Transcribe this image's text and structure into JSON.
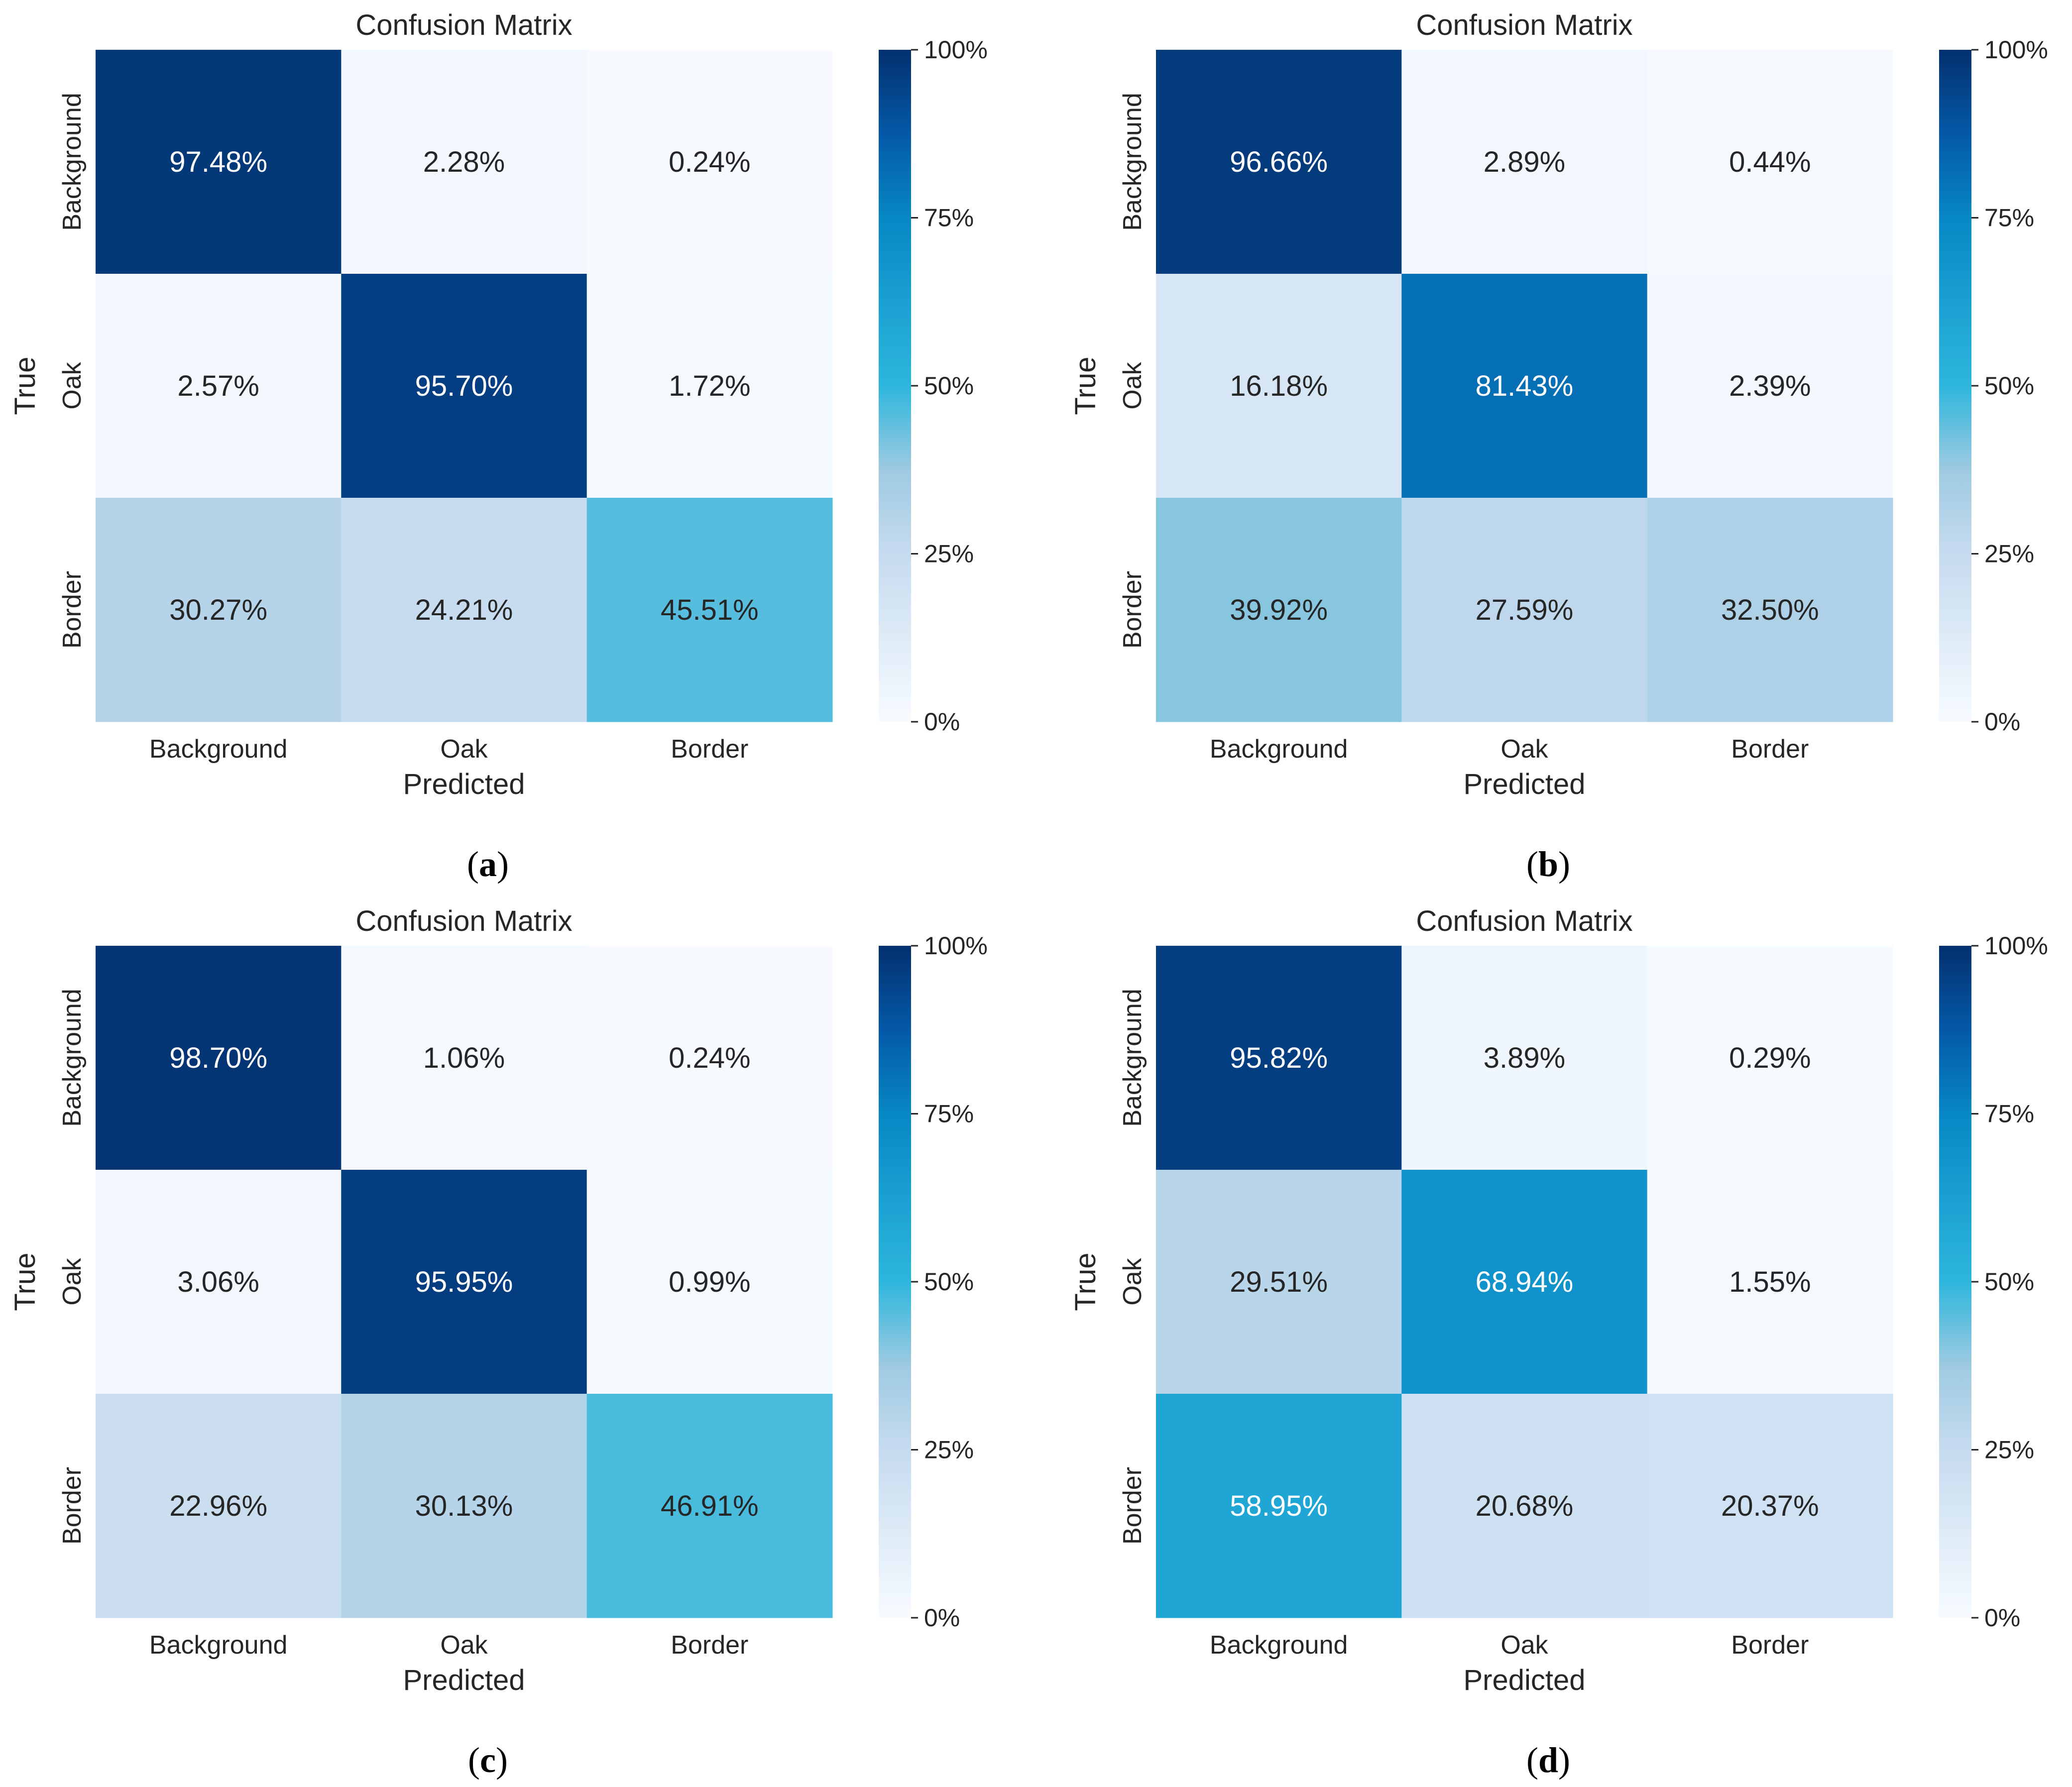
{
  "chart_data": [
    {
      "type": "heatmap",
      "panel_label": "a",
      "title": "Confusion Matrix",
      "xlabel": "Predicted",
      "ylabel": "True",
      "x_categories": [
        "Background",
        "Oak",
        "Border"
      ],
      "y_categories": [
        "Background",
        "Oak",
        "Border"
      ],
      "values": [
        [
          97.48,
          2.28,
          0.24
        ],
        [
          2.57,
          95.7,
          1.72
        ],
        [
          30.27,
          24.21,
          45.51
        ]
      ],
      "cell_labels": [
        [
          "97.48%",
          "2.28%",
          "0.24%"
        ],
        [
          "2.57%",
          "95.70%",
          "1.72%"
        ],
        [
          "30.27%",
          "24.21%",
          "45.51%"
        ]
      ],
      "colorbar": {
        "min": 0,
        "max": 100,
        "ticks": [
          "0%",
          "25%",
          "50%",
          "75%",
          "100%"
        ],
        "colormap": "Blues"
      }
    },
    {
      "type": "heatmap",
      "panel_label": "b",
      "title": "Confusion Matrix",
      "xlabel": "Predicted",
      "ylabel": "True",
      "x_categories": [
        "Background",
        "Oak",
        "Border"
      ],
      "y_categories": [
        "Background",
        "Oak",
        "Border"
      ],
      "values": [
        [
          96.66,
          2.89,
          0.44
        ],
        [
          16.18,
          81.43,
          2.39
        ],
        [
          39.92,
          27.59,
          32.5
        ]
      ],
      "cell_labels": [
        [
          "96.66%",
          "2.89%",
          "0.44%"
        ],
        [
          "16.18%",
          "81.43%",
          "2.39%"
        ],
        [
          "39.92%",
          "27.59%",
          "32.50%"
        ]
      ],
      "colorbar": {
        "min": 0,
        "max": 100,
        "ticks": [
          "0%",
          "25%",
          "50%",
          "75%",
          "100%"
        ],
        "colormap": "Blues"
      }
    },
    {
      "type": "heatmap",
      "panel_label": "c",
      "title": "Confusion Matrix",
      "xlabel": "Predicted",
      "ylabel": "True",
      "x_categories": [
        "Background",
        "Oak",
        "Border"
      ],
      "y_categories": [
        "Background",
        "Oak",
        "Border"
      ],
      "values": [
        [
          98.7,
          1.06,
          0.24
        ],
        [
          3.06,
          95.95,
          0.99
        ],
        [
          22.96,
          30.13,
          46.91
        ]
      ],
      "cell_labels": [
        [
          "98.70%",
          "1.06%",
          "0.24%"
        ],
        [
          "3.06%",
          "95.95%",
          "0.99%"
        ],
        [
          "22.96%",
          "30.13%",
          "46.91%"
        ]
      ],
      "colorbar": {
        "min": 0,
        "max": 100,
        "ticks": [
          "0%",
          "25%",
          "50%",
          "75%",
          "100%"
        ],
        "colormap": "Blues"
      }
    },
    {
      "type": "heatmap",
      "panel_label": "d",
      "title": "Confusion Matrix",
      "xlabel": "Predicted",
      "ylabel": "True",
      "x_categories": [
        "Background",
        "Oak",
        "Border"
      ],
      "y_categories": [
        "Background",
        "Oak",
        "Border"
      ],
      "values": [
        [
          95.82,
          3.89,
          0.29
        ],
        [
          29.51,
          68.94,
          1.55
        ],
        [
          58.95,
          20.68,
          20.37
        ]
      ],
      "cell_labels": [
        [
          "95.82%",
          "3.89%",
          "0.29%"
        ],
        [
          "29.51%",
          "68.94%",
          "1.55%"
        ],
        [
          "58.95%",
          "20.68%",
          "20.37%"
        ]
      ],
      "colorbar": {
        "min": 0,
        "max": 100,
        "ticks": [
          "0%",
          "25%",
          "50%",
          "75%",
          "100%"
        ],
        "colormap": "Blues"
      }
    }
  ]
}
